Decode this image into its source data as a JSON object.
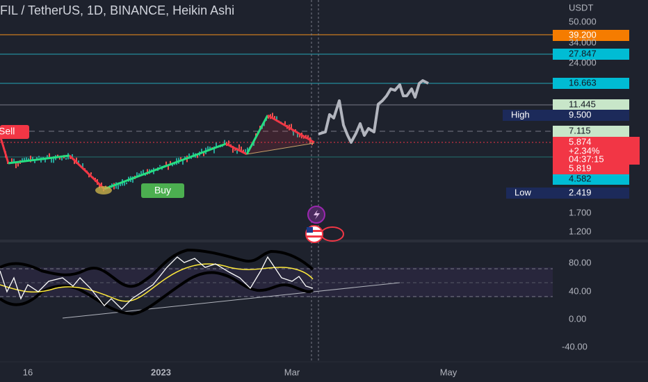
{
  "header": {
    "title": "FIL / TetherUS, 1D, BINANCE, Heikin Ashi"
  },
  "price_axis": {
    "currency": "USDT",
    "labels": [
      "50.000",
      "34.000",
      "24.000",
      "1.700",
      "1.200"
    ]
  },
  "badges": {
    "b39": "39.200",
    "b27": "27.847",
    "b16": "16.663",
    "b11": "11.445",
    "high_label": "High",
    "high": "9.500",
    "b7": "7.115",
    "last": "5.874",
    "change": "+2.34%",
    "countdown": "04:37:15",
    "b5819": "5.819",
    "b4582": "4.582",
    "low_label": "Low",
    "low": "2.419"
  },
  "signals": {
    "sell": "Sell",
    "buy": "Buy"
  },
  "indicator_axis": {
    "labels": [
      "80.00",
      "40.00",
      "0.00",
      "-40.00"
    ]
  },
  "time_axis": {
    "labels": [
      "16",
      "2023",
      "Mar",
      "May"
    ]
  }
}
